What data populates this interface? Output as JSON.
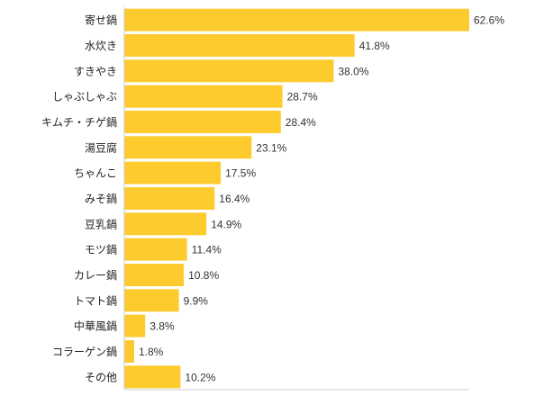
{
  "chart_data": {
    "type": "bar",
    "orientation": "horizontal",
    "categories": [
      "寄せ鍋",
      "水炊き",
      "すきやき",
      "しゃぶしゃぶ",
      "キムチ・チゲ鍋",
      "湯豆腐",
      "ちゃんこ",
      "みそ鍋",
      "豆乳鍋",
      "モツ鍋",
      "カレー鍋",
      "トマト鍋",
      "中華風鍋",
      "コラーゲン鍋",
      "その他"
    ],
    "values": [
      62.6,
      41.8,
      38.0,
      28.7,
      28.4,
      23.1,
      17.5,
      16.4,
      14.9,
      11.4,
      10.8,
      9.9,
      3.8,
      1.8,
      10.2
    ],
    "value_labels": [
      "62.6%",
      "41.8%",
      "38.0%",
      "28.7%",
      "28.4%",
      "23.1%",
      "17.5%",
      "16.4%",
      "14.9%",
      "11.4%",
      "10.8%",
      "9.9%",
      "3.8%",
      "1.8%",
      "10.2%"
    ],
    "title": "",
    "xlabel": "",
    "ylabel": "",
    "xlim": [
      0,
      62.6
    ],
    "grid": false,
    "legend": "none",
    "bar_color": "#FDCB2E",
    "axis_color": "#CCCCCC"
  }
}
